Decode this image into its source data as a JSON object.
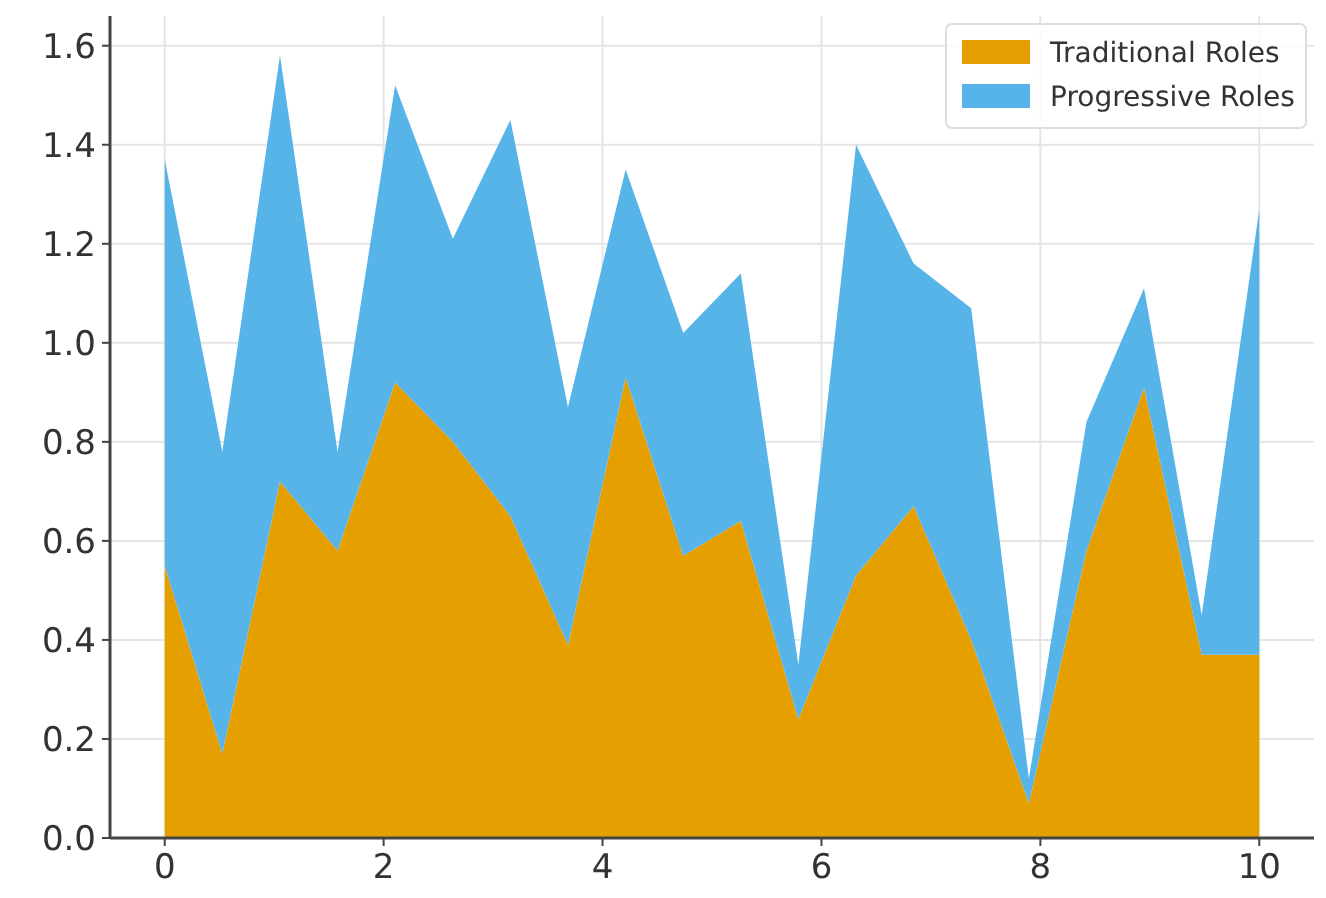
{
  "chart_data": {
    "type": "area",
    "stacked": true,
    "x": [
      0,
      0.526,
      1.053,
      1.579,
      2.105,
      2.632,
      3.158,
      3.684,
      4.211,
      4.737,
      5.263,
      5.789,
      6.316,
      6.842,
      7.368,
      7.895,
      8.421,
      8.947,
      9.474,
      10
    ],
    "series": [
      {
        "name": "Traditional Roles",
        "color": "#e69f00",
        "values": [
          0.55,
          0.17,
          0.72,
          0.58,
          0.92,
          0.8,
          0.65,
          0.39,
          0.93,
          0.57,
          0.64,
          0.24,
          0.53,
          0.67,
          0.4,
          0.07,
          0.58,
          0.91,
          0.37,
          0.37
        ]
      },
      {
        "name": "Progressive Roles",
        "color": "#56b4e9",
        "values": [
          0.82,
          0.61,
          0.86,
          0.2,
          0.6,
          0.41,
          0.8,
          0.48,
          0.42,
          0.45,
          0.5,
          0.11,
          0.87,
          0.49,
          0.67,
          0.05,
          0.26,
          0.2,
          0.08,
          0.9
        ]
      }
    ],
    "xlim": [
      -0.5,
      10.5
    ],
    "xticks": [
      0,
      2,
      4,
      6,
      8,
      10
    ],
    "ylim": [
      0,
      1.66
    ],
    "yticks": [
      {
        "value": 0,
        "label": "0.0"
      },
      {
        "value": 0.2,
        "label": "0.2"
      },
      {
        "value": 0.4,
        "label": "0.4"
      },
      {
        "value": 0.6,
        "label": "0.6"
      },
      {
        "value": 0.8,
        "label": "0.8"
      },
      {
        "value": 1,
        "label": "1.0"
      },
      {
        "value": 1.2,
        "label": "1.2"
      },
      {
        "value": 1.4,
        "label": "1.4"
      },
      {
        "value": 1.6,
        "label": "1.6"
      }
    ],
    "grid": true,
    "legend": "top right"
  }
}
